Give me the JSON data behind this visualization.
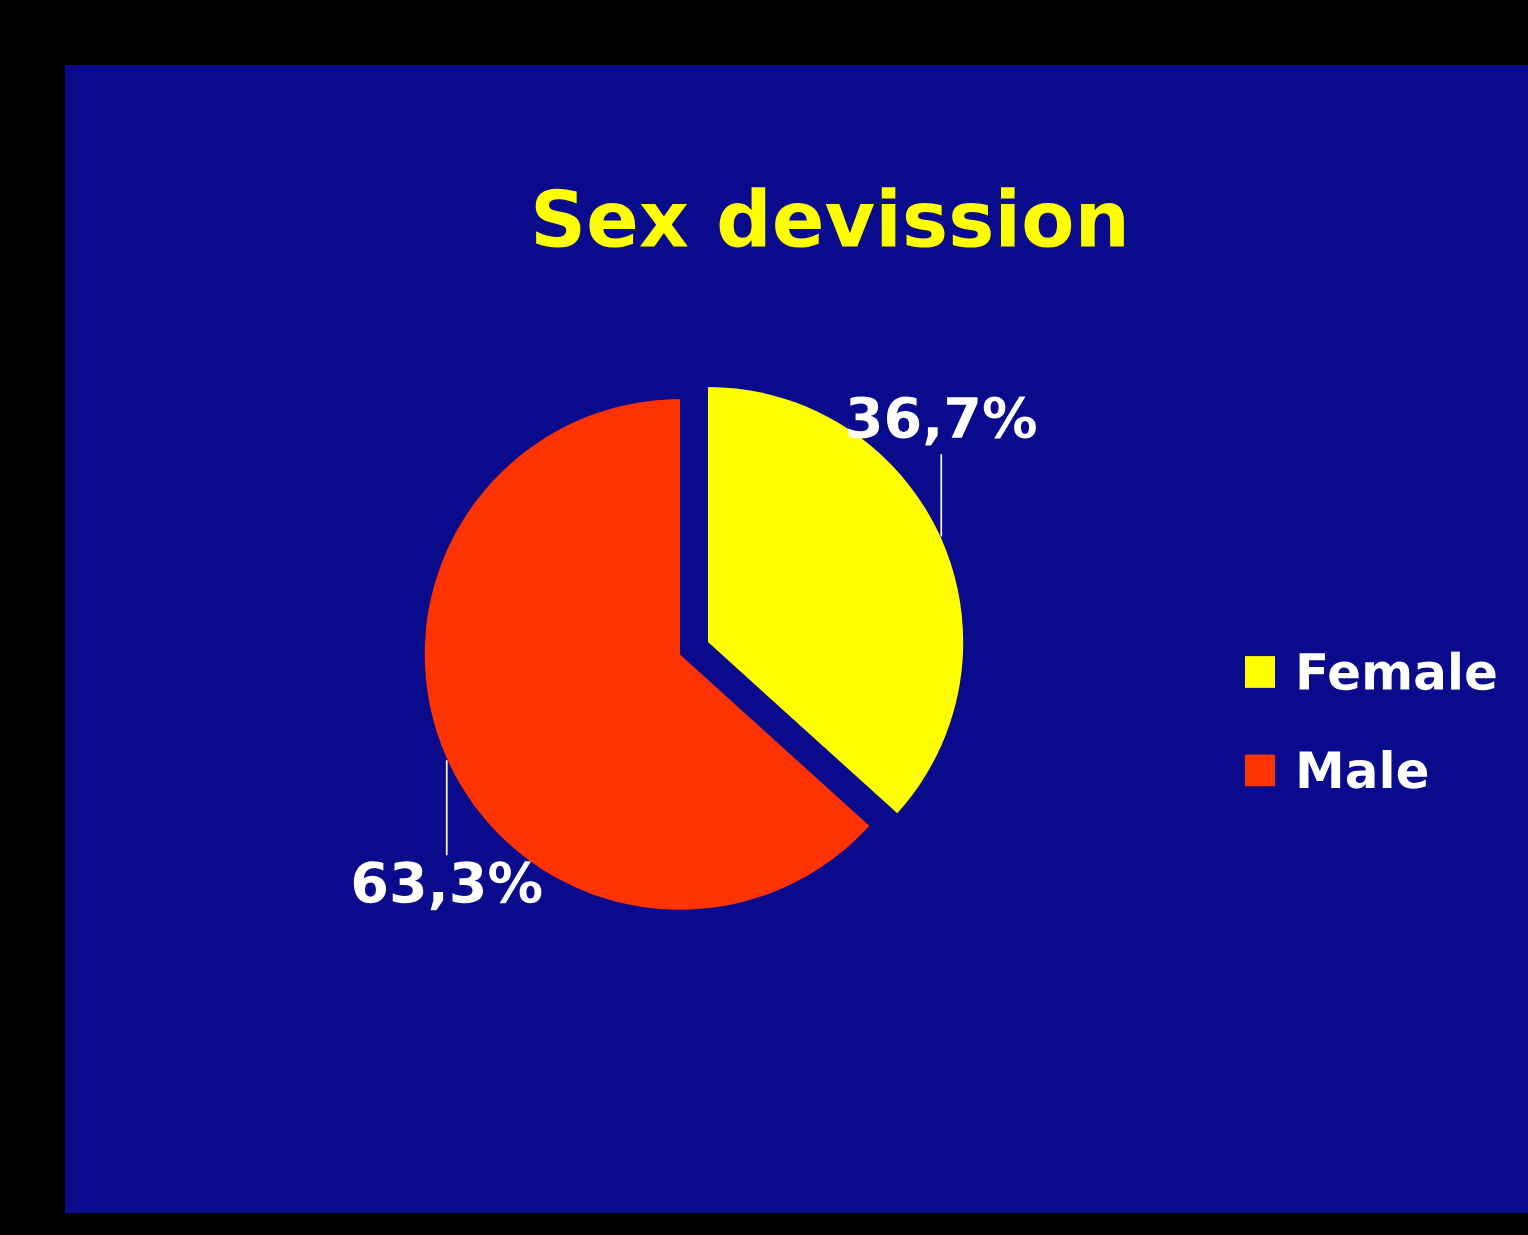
{
  "chart_data": {
    "type": "pie",
    "title": "Sex devission",
    "categories": [
      "Female",
      "Male"
    ],
    "values": [
      36.7,
      63.3
    ],
    "colors": [
      "#ffff00",
      "#ff3300"
    ],
    "value_labels": [
      "36,7%",
      "63,3%"
    ],
    "legend": "right"
  }
}
